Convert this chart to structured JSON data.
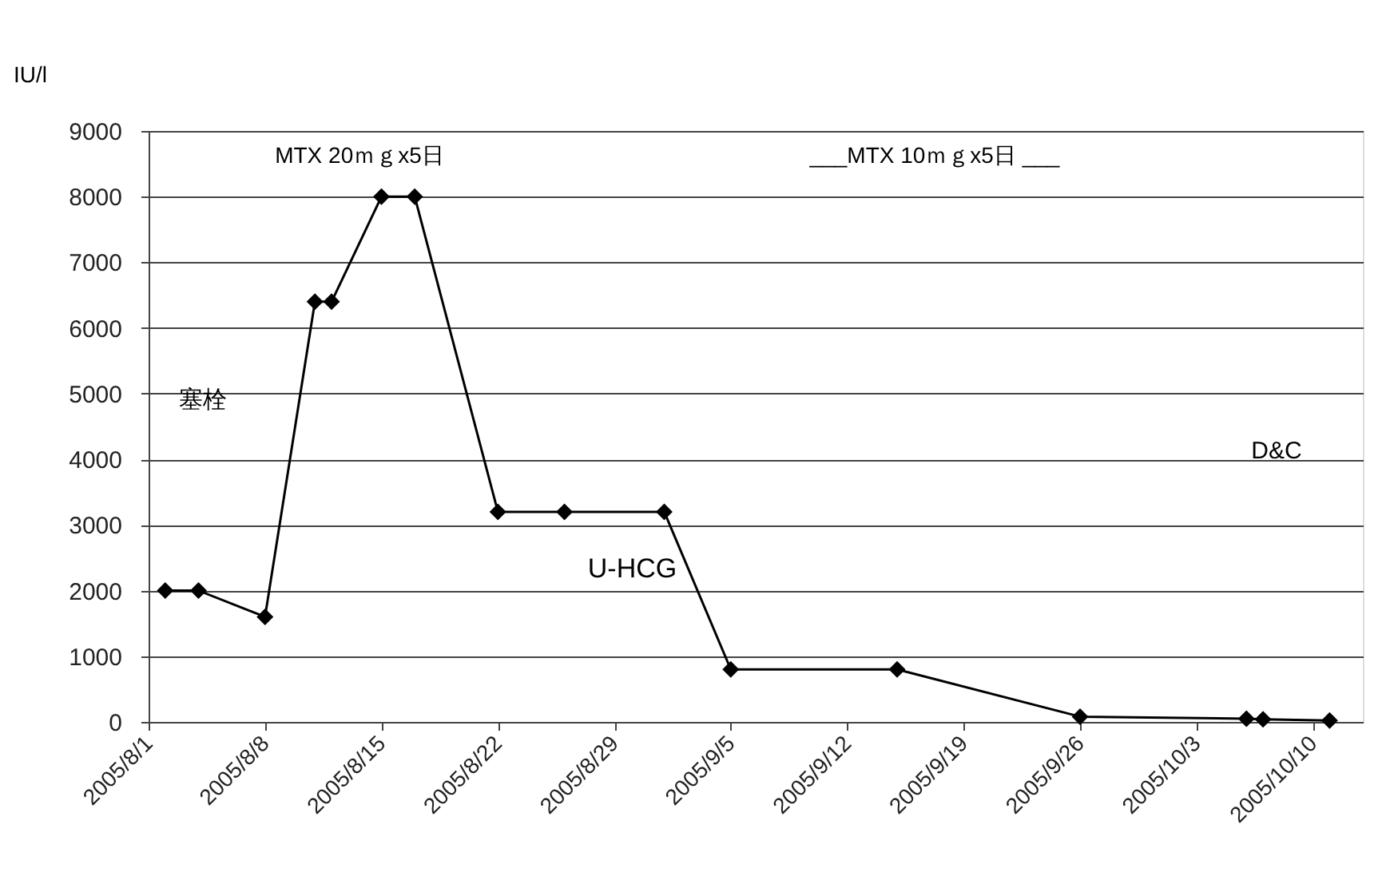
{
  "chart_data": {
    "type": "line",
    "ylabel": "IU/l",
    "x": [
      "2005-08-02",
      "2005-08-04",
      "2005-08-08",
      "2005-08-11",
      "2005-08-12",
      "2005-08-15",
      "2005-08-17",
      "2005-08-22",
      "2005-08-26",
      "2005-09-01",
      "2005-09-05",
      "2005-09-15",
      "2005-09-26",
      "2005-10-06",
      "2005-10-07",
      "2005-10-11"
    ],
    "series": [
      {
        "name": "U-HCG",
        "color": "#000000",
        "values": [
          2000,
          2000,
          1600,
          6400,
          6400,
          8000,
          8000,
          3200,
          3200,
          3200,
          800,
          800,
          80,
          50,
          40,
          20
        ]
      }
    ],
    "xlim": [
      "2005-08-01",
      "2005-10-13"
    ],
    "xticks": [
      {
        "value": "2005-08-01",
        "label": "2005/8/1"
      },
      {
        "value": "2005-08-08",
        "label": "2005/8/8"
      },
      {
        "value": "2005-08-15",
        "label": "2005/8/15"
      },
      {
        "value": "2005-08-22",
        "label": "2005/8/22"
      },
      {
        "value": "2005-08-29",
        "label": "2005/8/29"
      },
      {
        "value": "2005-09-05",
        "label": "2005/9/5"
      },
      {
        "value": "2005-09-12",
        "label": "2005/9/12"
      },
      {
        "value": "2005-09-19",
        "label": "2005/9/19"
      },
      {
        "value": "2005-09-26",
        "label": "2005/9/26"
      },
      {
        "value": "2005-10-03",
        "label": "2005/10/3"
      },
      {
        "value": "2005-10-10",
        "label": "2005/10/10"
      }
    ],
    "ylim": [
      0,
      9000
    ],
    "yticks": [
      0,
      1000,
      2000,
      3000,
      4000,
      5000,
      6000,
      7000,
      8000,
      9000
    ],
    "annotations": [
      "MTX 20ｍｇx5日",
      "___MTX 10ｍｇx5日 ___",
      "塞栓",
      "D&C"
    ],
    "grid": "y",
    "marker": "diamond",
    "line_style": "solid",
    "legend": false
  }
}
